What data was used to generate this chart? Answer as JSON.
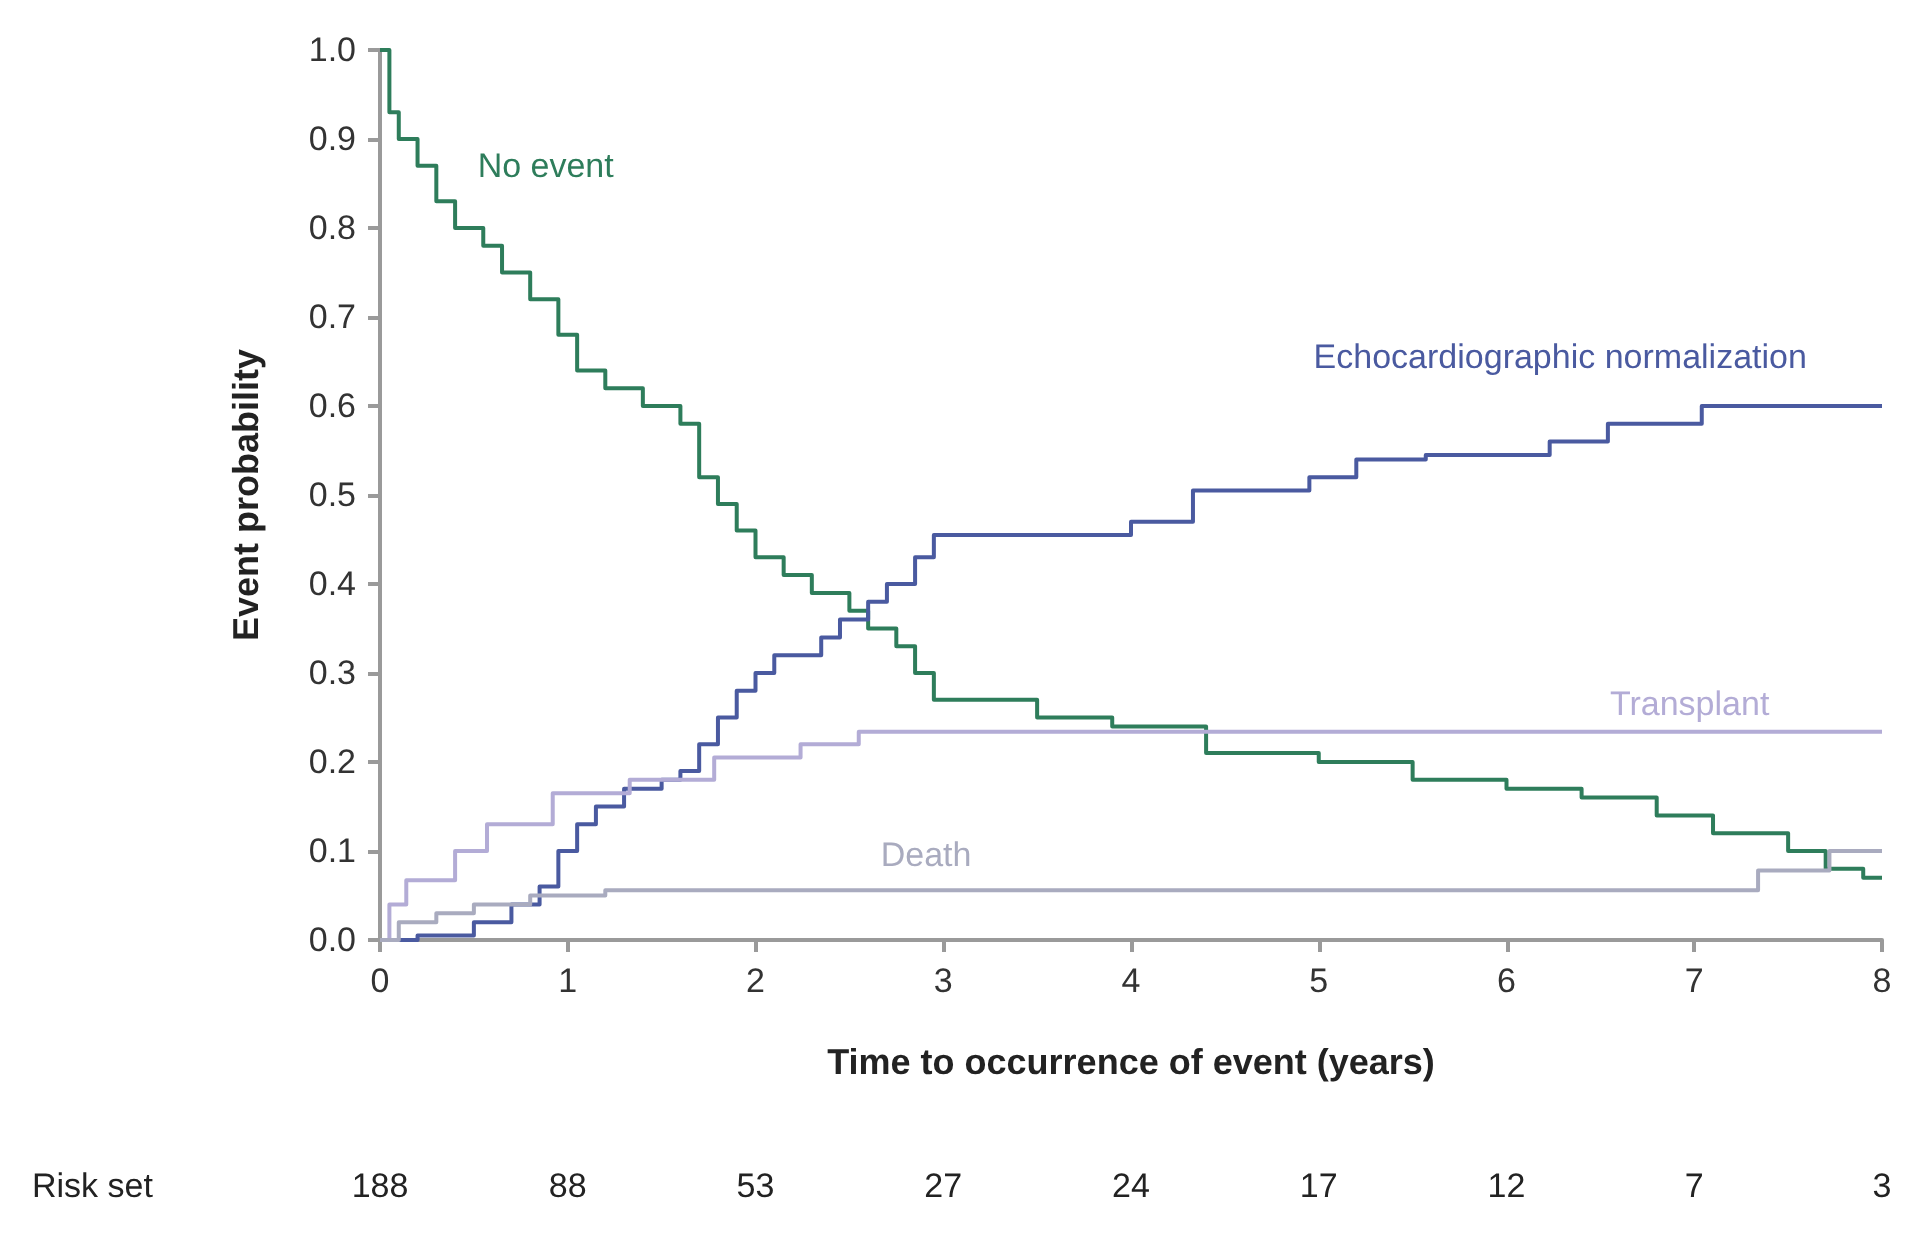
{
  "chart_data": {
    "type": "step",
    "xlabel": "Time to occurrence of event (years)",
    "ylabel": "Event probability",
    "xlim": [
      0,
      8
    ],
    "xticks": [
      0,
      1,
      2,
      3,
      4,
      5,
      6,
      7,
      8
    ],
    "ylim": [
      0,
      1
    ],
    "yticks": [
      {
        "value": 0,
        "label": "0.0"
      },
      {
        "value": 0.1,
        "label": "0.1"
      },
      {
        "value": 0.2,
        "label": "0.2"
      },
      {
        "value": 0.3,
        "label": "0.3"
      },
      {
        "value": 0.4,
        "label": "0.4"
      },
      {
        "value": 0.5,
        "label": "0.5"
      },
      {
        "value": 0.6,
        "label": "0.6"
      },
      {
        "value": 0.7,
        "label": "0.7"
      },
      {
        "value": 0.8,
        "label": "0.8"
      },
      {
        "value": 0.9,
        "label": "0.9"
      },
      {
        "value": 1,
        "label": "1.0"
      }
    ],
    "grid": false,
    "legend": false,
    "marker": "none",
    "line_style": "solid",
    "series": [
      {
        "name": "No event",
        "color": "#2e7d5b",
        "x": [
          0,
          0.05,
          0.1,
          0.2,
          0.3,
          0.4,
          0.55,
          0.65,
          0.8,
          0.95,
          1.05,
          1.2,
          1.4,
          1.6,
          1.7,
          1.8,
          1.9,
          2.0,
          2.15,
          2.3,
          2.5,
          2.6,
          2.75,
          2.85,
          2.95,
          3.5,
          3.9,
          4.4,
          5.0,
          5.5,
          6.0,
          6.4,
          6.8,
          7.1,
          7.5,
          7.7,
          7.9,
          8
        ],
        "values": [
          1,
          0.93,
          0.9,
          0.87,
          0.83,
          0.8,
          0.78,
          0.75,
          0.72,
          0.68,
          0.64,
          0.62,
          0.6,
          0.58,
          0.52,
          0.49,
          0.46,
          0.43,
          0.41,
          0.39,
          0.37,
          0.35,
          0.33,
          0.3,
          0.27,
          0.25,
          0.24,
          0.21,
          0.2,
          0.18,
          0.17,
          0.16,
          0.14,
          0.12,
          0.1,
          0.08,
          0.07,
          0.07
        ]
      },
      {
        "name": "Echocardiographic normalization",
        "color": "#4a5aa0",
        "x": [
          0,
          0.2,
          0.5,
          0.7,
          0.85,
          0.95,
          1.05,
          1.15,
          1.3,
          1.5,
          1.6,
          1.7,
          1.8,
          1.9,
          2.0,
          2.1,
          2.35,
          2.45,
          2.6,
          2.7,
          2.85,
          2.95,
          4.0,
          4.33,
          4.95,
          5.2,
          5.57,
          6.23,
          6.54,
          7.04,
          8
        ],
        "values": [
          0,
          0.005,
          0.02,
          0.04,
          0.06,
          0.1,
          0.13,
          0.15,
          0.17,
          0.18,
          0.19,
          0.22,
          0.25,
          0.28,
          0.3,
          0.32,
          0.34,
          0.36,
          0.38,
          0.4,
          0.43,
          0.455,
          0.47,
          0.505,
          0.52,
          0.54,
          0.545,
          0.56,
          0.58,
          0.6,
          0.6
        ]
      },
      {
        "name": "Transplant",
        "color": "#b3acd6",
        "x": [
          0,
          0.05,
          0.14,
          0.4,
          0.57,
          0.92,
          1.33,
          1.78,
          2.24,
          2.55,
          8
        ],
        "values": [
          0,
          0.04,
          0.067,
          0.1,
          0.13,
          0.165,
          0.18,
          0.205,
          0.22,
          0.234,
          0.234
        ]
      },
      {
        "name": "Death",
        "color": "#a9abbf",
        "x": [
          0,
          0.1,
          0.3,
          0.5,
          0.8,
          1.2,
          7.34,
          7.72,
          8
        ],
        "values": [
          0,
          0.02,
          0.03,
          0.04,
          0.05,
          0.056,
          0.078,
          0.1,
          0.1
        ]
      }
    ],
    "annotations": [
      "Risk set",
      "188",
      "88",
      "53",
      "27",
      "24",
      "17",
      "12",
      "7",
      "3"
    ]
  }
}
